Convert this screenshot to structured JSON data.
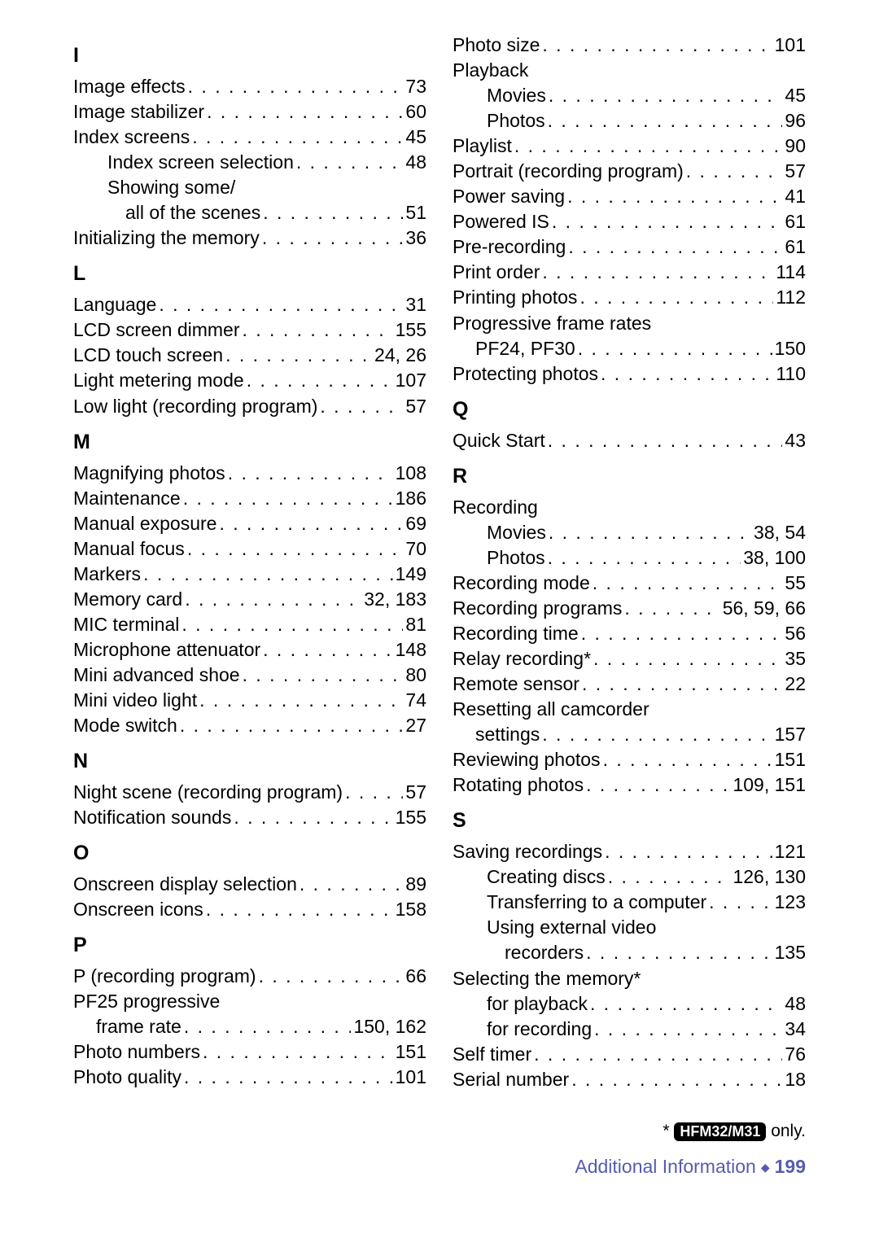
{
  "font_family": "Arial, Helvetica, sans-serif",
  "body_fontsize": 23,
  "heading_fontsize": 25,
  "text_color": "#000000",
  "background_color": "#ffffff",
  "footer_color": "#555cb0",
  "left": {
    "sections": [
      {
        "letter": "I",
        "items": [
          {
            "label": "Image effects",
            "page": "73",
            "indent": 0
          },
          {
            "label": "Image stabilizer",
            "page": "60",
            "indent": 0
          },
          {
            "label": "Index screens",
            "page": "45",
            "indent": 0
          },
          {
            "label": "Index screen selection",
            "page": "48",
            "indent": 1
          },
          {
            "label": "Showing some/",
            "page": "",
            "indent": 1,
            "nodots": true
          },
          {
            "label": "all of the scenes",
            "page": "51",
            "indent": 2
          },
          {
            "label": "Initializing the memory",
            "page": "36",
            "indent": 0
          }
        ]
      },
      {
        "letter": "L",
        "items": [
          {
            "label": "Language",
            "page": "31",
            "indent": 0
          },
          {
            "label": "LCD screen dimmer",
            "page": "155",
            "indent": 0
          },
          {
            "label": "LCD touch screen",
            "page": "24, 26",
            "indent": 0
          },
          {
            "label": "Light metering mode",
            "page": "107",
            "indent": 0
          },
          {
            "label": "Low light (recording program)",
            "page": "57",
            "indent": 0
          }
        ]
      },
      {
        "letter": "M",
        "items": [
          {
            "label": "Magnifying photos",
            "page": "108",
            "indent": 0
          },
          {
            "label": "Maintenance",
            "page": "186",
            "indent": 0
          },
          {
            "label": "Manual exposure",
            "page": "69",
            "indent": 0
          },
          {
            "label": "Manual focus",
            "page": "70",
            "indent": 0
          },
          {
            "label": "Markers",
            "page": "149",
            "indent": 0
          },
          {
            "label": "Memory card",
            "page": "32, 183",
            "indent": 0
          },
          {
            "label": "MIC terminal",
            "page": "81",
            "indent": 0
          },
          {
            "label": "Microphone attenuator",
            "page": "148",
            "indent": 0
          },
          {
            "label": "Mini advanced shoe",
            "page": "80",
            "indent": 0
          },
          {
            "label": "Mini video light",
            "page": "74",
            "indent": 0
          },
          {
            "label": "Mode switch",
            "page": "27",
            "indent": 0
          }
        ]
      },
      {
        "letter": "N",
        "items": [
          {
            "label": "Night scene (recording program)",
            "page": "57",
            "indent": 0
          },
          {
            "label": "Notification sounds",
            "page": "155",
            "indent": 0
          }
        ]
      },
      {
        "letter": "O",
        "items": [
          {
            "label": "Onscreen display selection",
            "page": "89",
            "indent": 0
          },
          {
            "label": "Onscreen icons",
            "page": "158",
            "indent": 0
          }
        ]
      },
      {
        "letter": "P",
        "items": [
          {
            "label": "P (recording program)",
            "page": "66",
            "indent": 0
          },
          {
            "label": "PF25 progressive",
            "page": "",
            "indent": 0,
            "nodots": true
          },
          {
            "label": "frame rate",
            "page": "150, 162",
            "indent": 3
          },
          {
            "label": "Photo numbers",
            "page": "151",
            "indent": 0
          },
          {
            "label": "Photo quality",
            "page": "101",
            "indent": 0
          }
        ]
      }
    ]
  },
  "right": {
    "sections": [
      {
        "letter": "",
        "items": [
          {
            "label": "Photo size",
            "page": "101",
            "indent": 0
          },
          {
            "label": "Playback",
            "page": "",
            "indent": 0,
            "nodots": true
          },
          {
            "label": "Movies",
            "page": "45",
            "indent": 1
          },
          {
            "label": "Photos",
            "page": "96",
            "indent": 1
          },
          {
            "label": "Playlist",
            "page": "90",
            "indent": 0
          },
          {
            "label": "Portrait (recording program)",
            "page": "57",
            "indent": 0
          },
          {
            "label": "Power saving",
            "page": "41",
            "indent": 0
          },
          {
            "label": "Powered IS",
            "page": "61",
            "indent": 0
          },
          {
            "label": "Pre-recording",
            "page": "61",
            "indent": 0
          },
          {
            "label": "Print order",
            "page": "114",
            "indent": 0
          },
          {
            "label": "Printing photos",
            "page": "112",
            "indent": 0
          },
          {
            "label": "Progressive frame rates",
            "page": "",
            "indent": 0,
            "nodots": true
          },
          {
            "label": "PF24, PF30",
            "page": "150",
            "indent": 3
          },
          {
            "label": "Protecting photos",
            "page": "110",
            "indent": 0
          }
        ]
      },
      {
        "letter": "Q",
        "items": [
          {
            "label": "Quick Start",
            "page": "43",
            "indent": 0
          }
        ]
      },
      {
        "letter": "R",
        "items": [
          {
            "label": "Recording",
            "page": "",
            "indent": 0,
            "nodots": true
          },
          {
            "label": "Movies",
            "page": "38, 54",
            "indent": 1
          },
          {
            "label": "Photos",
            "page": "38, 100",
            "indent": 1
          },
          {
            "label": "Recording mode",
            "page": "55",
            "indent": 0
          },
          {
            "label": "Recording programs",
            "page": "56, 59, 66",
            "indent": 0
          },
          {
            "label": "Recording time",
            "page": "56",
            "indent": 0
          },
          {
            "label": "Relay recording*",
            "page": "35",
            "indent": 0
          },
          {
            "label": "Remote sensor",
            "page": "22",
            "indent": 0
          },
          {
            "label": "Resetting all camcorder",
            "page": "",
            "indent": 0,
            "nodots": true
          },
          {
            "label": "settings",
            "page": "157",
            "indent": 3
          },
          {
            "label": "Reviewing photos",
            "page": "151",
            "indent": 0
          },
          {
            "label": "Rotating photos",
            "page": "109, 151",
            "indent": 0
          }
        ]
      },
      {
        "letter": "S",
        "items": [
          {
            "label": "Saving recordings",
            "page": "121",
            "indent": 0
          },
          {
            "label": "Creating discs",
            "page": "126, 130",
            "indent": 1
          },
          {
            "label": "Transferring to a computer",
            "page": "123",
            "indent": 1
          },
          {
            "label": "Using external video",
            "page": "",
            "indent": 1,
            "nodots": true
          },
          {
            "label": "recorders",
            "page": "135",
            "indent": 2
          },
          {
            "label": "Selecting the memory*",
            "page": "",
            "indent": 0,
            "nodots": true
          },
          {
            "label": "for playback",
            "page": "48",
            "indent": 1
          },
          {
            "label": "for recording",
            "page": "34",
            "indent": 1
          },
          {
            "label": "Self timer",
            "page": "76",
            "indent": 0
          },
          {
            "label": "Serial number",
            "page": "18",
            "indent": 0
          }
        ]
      }
    ]
  },
  "footnote": {
    "prefix": "* ",
    "model": "HFM32/M31",
    "suffix": " only."
  },
  "footer": {
    "label": "Additional Information",
    "page": "199"
  }
}
